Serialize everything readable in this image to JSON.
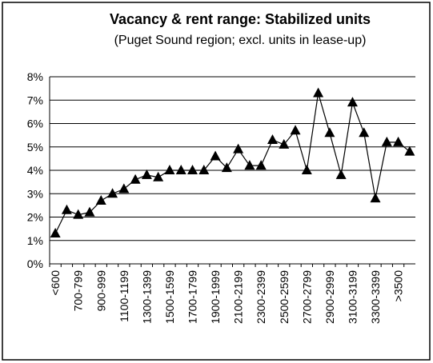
{
  "chart_data": {
    "type": "line",
    "title": "Vacancy & rent range: Stabilized units",
    "subtitle": "(Puget Sound region; excl. units in lease-up)",
    "categories": [
      "<600",
      null,
      "700-799",
      null,
      "900-999",
      null,
      "1100-1199",
      null,
      "1300-1399",
      null,
      "1500-1599",
      null,
      "1700-1799",
      null,
      "1900-1999",
      null,
      "2100-2199",
      null,
      "2300-2399",
      null,
      "2500-2599",
      null,
      "2700-2799",
      null,
      "2900-2999",
      null,
      "3100-3199",
      null,
      "3300-3399",
      null,
      ">3500",
      null
    ],
    "series": [
      {
        "name": "Vacancy",
        "color": "#000000",
        "values": [
          1.3,
          2.3,
          2.1,
          2.2,
          2.7,
          3.0,
          3.2,
          3.6,
          3.8,
          3.7,
          4.0,
          4.0,
          4.0,
          4.0,
          4.6,
          4.1,
          4.9,
          4.2,
          4.2,
          5.3,
          5.1,
          5.7,
          4.0,
          7.3,
          5.6,
          3.8,
          6.9,
          5.6,
          2.8,
          5.2,
          5.2,
          4.8
        ]
      }
    ],
    "ylim": [
      0,
      8
    ],
    "yticks": [
      {
        "value": 0,
        "label": "0%"
      },
      {
        "value": 1,
        "label": "1%"
      },
      {
        "value": 2,
        "label": "2%"
      },
      {
        "value": 3,
        "label": "3%"
      },
      {
        "value": 4,
        "label": "4%"
      },
      {
        "value": 5,
        "label": "5%"
      },
      {
        "value": 6,
        "label": "6%"
      },
      {
        "value": 7,
        "label": "7%"
      },
      {
        "value": 8,
        "label": "8%"
      }
    ],
    "grid": true
  }
}
